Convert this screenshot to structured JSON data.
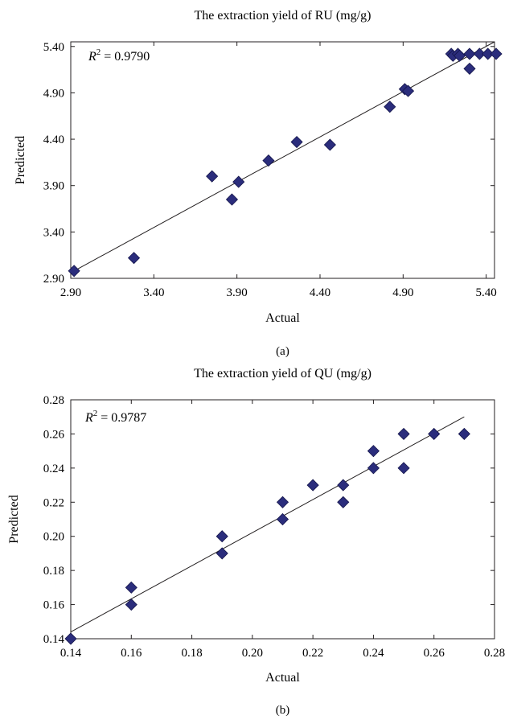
{
  "chart_data": [
    {
      "type": "scatter",
      "title": "The extraction yield of RU (mg/g)",
      "xlabel": "Actual",
      "ylabel": "Predicted",
      "panel_label": "(a)",
      "r2_text": "= 0.9790",
      "xlim": [
        2.9,
        5.45
      ],
      "ylim": [
        2.9,
        5.45
      ],
      "xticks": [
        "2.90",
        "3.40",
        "3.90",
        "4.40",
        "4.90",
        "5.40"
      ],
      "yticks": [
        "2.90",
        "3.40",
        "3.90",
        "4.40",
        "4.90",
        "5.40"
      ],
      "tick_values": [
        2.9,
        3.4,
        3.9,
        4.4,
        4.9,
        5.4
      ],
      "fit_line": [
        [
          2.92,
          2.98
        ],
        [
          5.45,
          5.45
        ]
      ],
      "points": [
        [
          2.92,
          2.98
        ],
        [
          3.28,
          3.12
        ],
        [
          3.75,
          4.0
        ],
        [
          3.87,
          3.75
        ],
        [
          3.91,
          3.94
        ],
        [
          4.09,
          4.17
        ],
        [
          4.26,
          4.37
        ],
        [
          4.46,
          4.34
        ],
        [
          4.82,
          4.75
        ],
        [
          4.91,
          4.94
        ],
        [
          4.93,
          4.92
        ],
        [
          5.19,
          5.32
        ],
        [
          5.2,
          5.3
        ],
        [
          5.23,
          5.32
        ],
        [
          5.24,
          5.3
        ],
        [
          5.3,
          5.16
        ],
        [
          5.3,
          5.32
        ],
        [
          5.36,
          5.32
        ],
        [
          5.41,
          5.32
        ],
        [
          5.46,
          5.32
        ]
      ],
      "marker_color": "#2b2d7c",
      "grid": false,
      "legend": "none"
    },
    {
      "type": "scatter",
      "title": "The extraction yield of QU (mg/g)",
      "xlabel": "Actual",
      "ylabel": "Predicted",
      "panel_label": "(b)",
      "r2_text": "= 0.9787",
      "xlim": [
        0.14,
        0.28
      ],
      "ylim": [
        0.14,
        0.28
      ],
      "xticks": [
        "0.14",
        "0.16",
        "0.18",
        "0.20",
        "0.22",
        "0.24",
        "0.26",
        "0.28"
      ],
      "yticks": [
        "0.14",
        "0.16",
        "0.18",
        "0.20",
        "0.22",
        "0.24",
        "0.26",
        "0.28"
      ],
      "tick_values": [
        0.14,
        0.16,
        0.18,
        0.2,
        0.22,
        0.24,
        0.26,
        0.28
      ],
      "fit_line": [
        [
          0.14,
          0.144
        ],
        [
          0.27,
          0.27
        ]
      ],
      "points": [
        [
          0.14,
          0.14
        ],
        [
          0.16,
          0.17
        ],
        [
          0.16,
          0.16
        ],
        [
          0.19,
          0.2
        ],
        [
          0.19,
          0.19
        ],
        [
          0.21,
          0.22
        ],
        [
          0.21,
          0.21
        ],
        [
          0.22,
          0.23
        ],
        [
          0.23,
          0.23
        ],
        [
          0.23,
          0.22
        ],
        [
          0.24,
          0.25
        ],
        [
          0.24,
          0.24
        ],
        [
          0.25,
          0.26
        ],
        [
          0.25,
          0.24
        ],
        [
          0.26,
          0.26
        ],
        [
          0.27,
          0.26
        ]
      ],
      "marker_color": "#2b2d7c",
      "grid": false,
      "legend": "none"
    }
  ]
}
